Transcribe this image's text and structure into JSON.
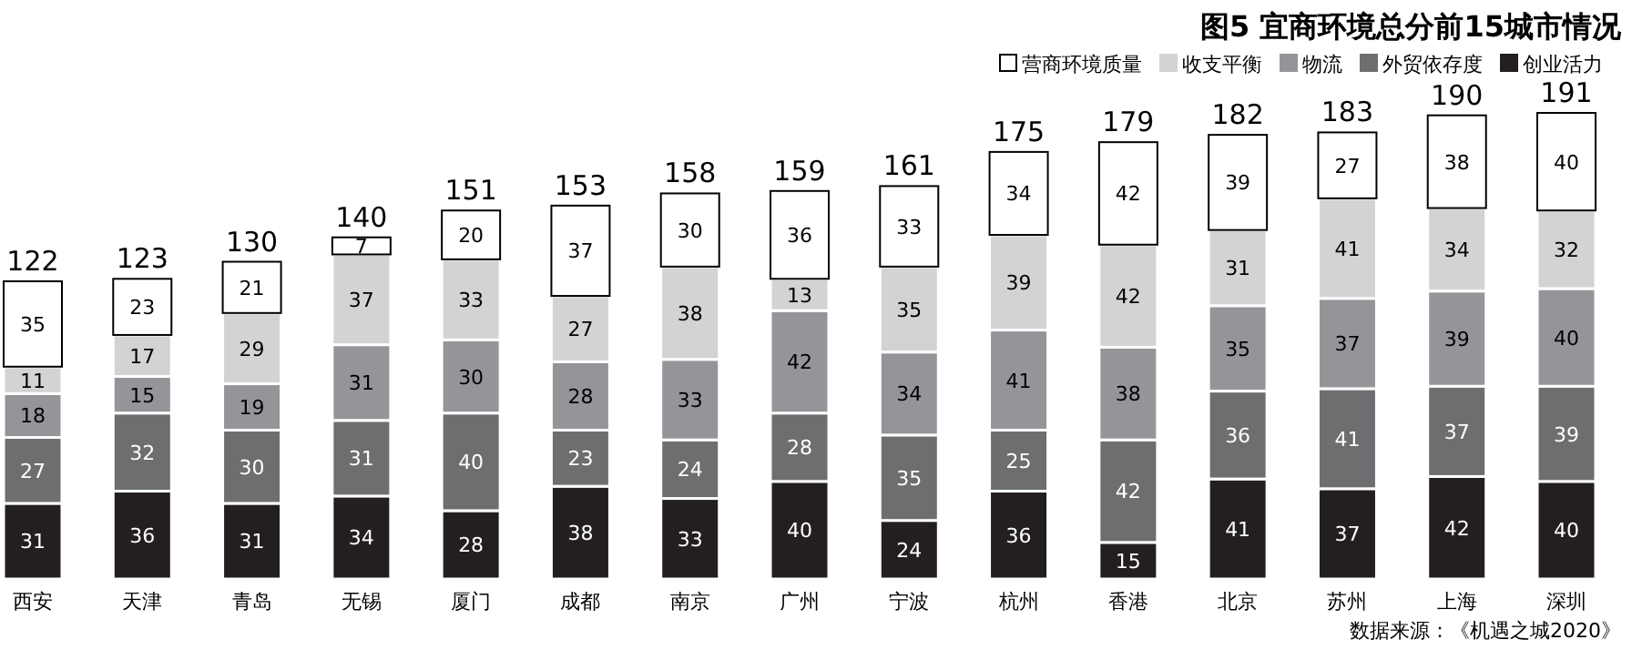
{
  "chart_data": {
    "type": "bar",
    "stacked": true,
    "data_labels": true,
    "legend": "top right",
    "title": "图5 宜商环境总分前15城市情况",
    "annotations": [
      "数据来源：《机遇之城2020》"
    ],
    "categories": [
      "西安",
      "天津",
      "青岛",
      "无锡",
      "厦门",
      "成都",
      "南京",
      "广州",
      "宁波",
      "杭州",
      "香港",
      "北京",
      "苏州",
      "上海",
      "深圳"
    ],
    "series": [
      {
        "name": "创业活力",
        "color": "#231f20",
        "values": [
          31,
          36,
          31,
          34,
          28,
          38,
          33,
          40,
          24,
          36,
          15,
          41,
          37,
          42,
          40
        ]
      },
      {
        "name": "外贸依存度",
        "color": "#6d6e70",
        "values": [
          27,
          32,
          30,
          31,
          40,
          23,
          24,
          28,
          35,
          25,
          42,
          36,
          41,
          37,
          39
        ]
      },
      {
        "name": "物流",
        "color": "#939598",
        "values": [
          18,
          15,
          19,
          31,
          30,
          28,
          33,
          42,
          34,
          41,
          38,
          35,
          37,
          39,
          40
        ]
      },
      {
        "name": "收支平衡",
        "color": "#d1d3d4",
        "values": [
          11,
          17,
          29,
          37,
          33,
          27,
          38,
          13,
          35,
          39,
          42,
          31,
          41,
          34,
          32
        ]
      },
      {
        "name": "营商环境质量",
        "color": "#ffffff",
        "values": [
          35,
          23,
          21,
          7,
          20,
          37,
          30,
          36,
          33,
          34,
          42,
          39,
          27,
          38,
          40
        ]
      }
    ],
    "totals": [
      "122",
      "123",
      "130",
      "140",
      "151",
      "153",
      "158",
      "159",
      "161",
      "175",
      "179",
      "182",
      "183",
      "190",
      "191"
    ]
  }
}
